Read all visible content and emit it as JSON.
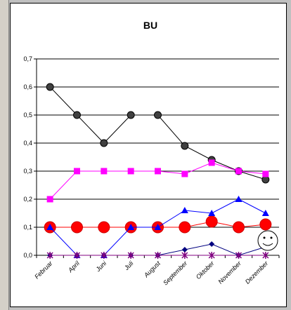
{
  "chart_data": {
    "type": "line",
    "title": "BU",
    "xlabel": "",
    "ylabel": "",
    "ylim": [
      0,
      0.7
    ],
    "yticks": [
      "0,0",
      "0,1",
      "0,2",
      "0,3",
      "0,4",
      "0,5",
      "0,6",
      "0,7"
    ],
    "categories": [
      "Februar",
      "April",
      "Juni",
      "Juli",
      "August",
      "September",
      "Oktober",
      "November",
      "Dezember"
    ],
    "grid": "horizontal",
    "legend": "none",
    "series": [
      {
        "values": [
          0.6,
          0.5,
          0.4,
          0.5,
          0.5,
          0.39,
          0.34,
          0.3,
          0.27
        ],
        "color": "#404040",
        "marker": "circle-small",
        "line": "#000000"
      },
      {
        "values": [
          0.2,
          0.3,
          0.3,
          0.3,
          0.3,
          0.29,
          0.33,
          0.3,
          0.29
        ],
        "color": "#ff00ff",
        "marker": "square",
        "line": "#ff00ff"
      },
      {
        "values": [
          0.1,
          0.1,
          0.1,
          0.1,
          0.1,
          0.1,
          0.12,
          0.1,
          0.11
        ],
        "color": "#ff0000",
        "marker": "circle-large",
        "line": "#ff0000"
      },
      {
        "values": [
          0.1,
          0.0,
          0.0,
          0.1,
          0.1,
          0.16,
          0.15,
          0.2,
          0.15
        ],
        "color": "#0000ff",
        "marker": "triangle",
        "line": "#0000ff"
      },
      {
        "values": [
          0.0,
          0.0,
          0.0,
          0.0,
          0.0,
          0.02,
          0.04,
          0.0,
          0.03
        ],
        "color": "#000080",
        "marker": "diamond",
        "line": "#000080"
      },
      {
        "values": [
          0.0,
          0.0,
          0.0,
          0.0,
          0.0,
          0.0,
          0.0,
          0.0,
          0.0
        ],
        "color": "#800080",
        "marker": "x",
        "line": "#800080"
      }
    ]
  },
  "decor": {
    "smiley_icon": "smiley-face-icon"
  }
}
